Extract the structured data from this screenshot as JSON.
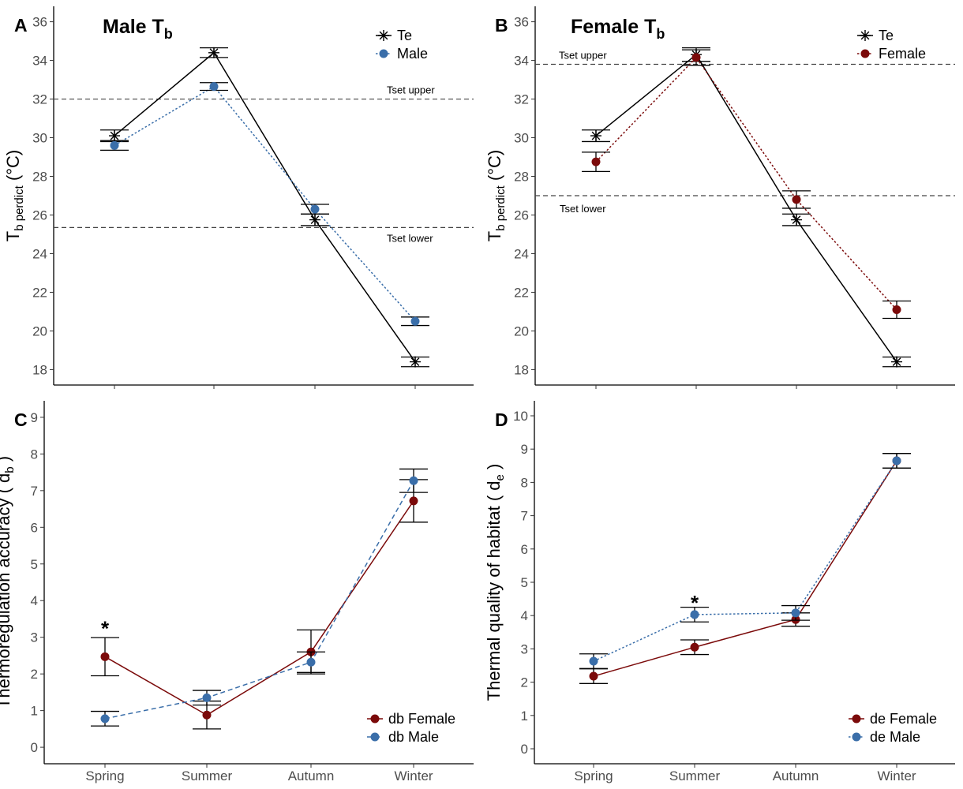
{
  "chart_data": [
    {
      "panel": "A",
      "type": "line",
      "title": "Male T",
      "title_sub": "b",
      "ylabel": "T",
      "ylabel_sub": "b perdict",
      "ylabel_unit": " (°C)",
      "ylim": [
        17.2,
        36.8
      ],
      "yticks": [
        18,
        20,
        22,
        24,
        26,
        28,
        30,
        32,
        34,
        36
      ],
      "categories": [
        "Spring",
        "Summer",
        "Autumn",
        "Winter"
      ],
      "show_x_labels": false,
      "grid": false,
      "legend": "top-right",
      "hlines": [
        {
          "label": "Tset upper",
          "y": 32.0,
          "label_pos": "right-above"
        },
        {
          "label": "Tset lower",
          "y": 25.35,
          "label_pos": "right-below"
        }
      ],
      "series": [
        {
          "name": "Te",
          "color": "#000000",
          "marker": "asterisk",
          "dash": "solid",
          "values": [
            30.1,
            34.4,
            25.75,
            18.4
          ],
          "err": [
            0.3,
            0.25,
            0.3,
            0.25
          ]
        },
        {
          "name": "Male",
          "color": "#3A6EA9",
          "marker": "circle",
          "dash": "dotted",
          "values": [
            29.6,
            32.65,
            26.3,
            20.5
          ],
          "err": [
            0.25,
            0.2,
            0.25,
            0.22
          ]
        }
      ]
    },
    {
      "panel": "B",
      "type": "line",
      "title": "Female T",
      "title_sub": "b",
      "ylabel": "T",
      "ylabel_sub": "b perdict",
      "ylabel_unit": " (°C)",
      "ylim": [
        17.2,
        36.8
      ],
      "yticks": [
        18,
        20,
        22,
        24,
        26,
        28,
        30,
        32,
        34,
        36
      ],
      "categories": [
        "Spring",
        "Summer",
        "Autumn",
        "Winter"
      ],
      "show_x_labels": false,
      "grid": false,
      "legend": "top-right",
      "hlines": [
        {
          "label": "Tset upper",
          "y": 33.8,
          "label_pos": "left-above"
        },
        {
          "label": "Tset lower",
          "y": 27.0,
          "label_pos": "left-below"
        }
      ],
      "series": [
        {
          "name": "Te",
          "color": "#000000",
          "marker": "asterisk",
          "dash": "solid",
          "values": [
            30.1,
            34.3,
            25.75,
            18.4
          ],
          "err": [
            0.3,
            0.35,
            0.3,
            0.25
          ]
        },
        {
          "name": "Female",
          "color": "#7B0A0A",
          "marker": "circle",
          "dash": "dotted",
          "values": [
            28.75,
            34.15,
            26.8,
            21.1
          ],
          "err": [
            0.5,
            0.4,
            0.45,
            0.45
          ]
        }
      ]
    },
    {
      "panel": "C",
      "type": "line",
      "title": "",
      "ylabel": "Thermoregulation accuracy ( d",
      "ylabel_sub": "b",
      "ylabel_unit": " )",
      "ylim": [
        -0.45,
        9.45
      ],
      "yticks": [
        0,
        1,
        2,
        3,
        4,
        5,
        6,
        7,
        8,
        9
      ],
      "categories": [
        "Spring",
        "Summer",
        "Autumn",
        "Winter"
      ],
      "show_x_labels": true,
      "grid": false,
      "legend": "bottom-right",
      "hlines": [],
      "annotations": [
        {
          "text": "*",
          "category": "Spring",
          "y": 3.35
        }
      ],
      "series": [
        {
          "name": "db Female",
          "color": "#7B0A0A",
          "marker": "circle",
          "dash": "solid",
          "values": [
            2.47,
            0.88,
            2.6,
            6.72
          ],
          "err": [
            0.52,
            0.38,
            0.6,
            0.58
          ]
        },
        {
          "name": "db Male",
          "color": "#3A6EA9",
          "marker": "circle",
          "dash": "dashed",
          "values": [
            0.78,
            1.35,
            2.32,
            7.27
          ],
          "err": [
            0.2,
            0.2,
            0.28,
            0.32
          ]
        }
      ]
    },
    {
      "panel": "D",
      "type": "line",
      "title": "",
      "ylabel": "Thermal quality of habitat ( d",
      "ylabel_sub": "e",
      "ylabel_unit": " )",
      "ylim": [
        -0.45,
        10.45
      ],
      "yticks": [
        0,
        1,
        2,
        3,
        4,
        5,
        6,
        7,
        8,
        9,
        10
      ],
      "categories": [
        "Spring",
        "Summer",
        "Autumn",
        "Winter"
      ],
      "show_x_labels": true,
      "grid": false,
      "legend": "bottom-right",
      "hlines": [],
      "annotations": [
        {
          "text": "*",
          "category": "Summer",
          "y": 4.5
        }
      ],
      "series": [
        {
          "name": "de Female",
          "color": "#7B0A0A",
          "marker": "circle",
          "dash": "solid",
          "values": [
            2.18,
            3.05,
            3.88,
            8.65
          ],
          "err": [
            0.22,
            0.22,
            0.2,
            0.22
          ]
        },
        {
          "name": "de Male",
          "color": "#3A6EA9",
          "marker": "circle",
          "dash": "dotted",
          "values": [
            2.63,
            4.03,
            4.08,
            8.65
          ],
          "err": [
            0.22,
            0.22,
            0.22,
            0.22
          ]
        }
      ]
    }
  ]
}
